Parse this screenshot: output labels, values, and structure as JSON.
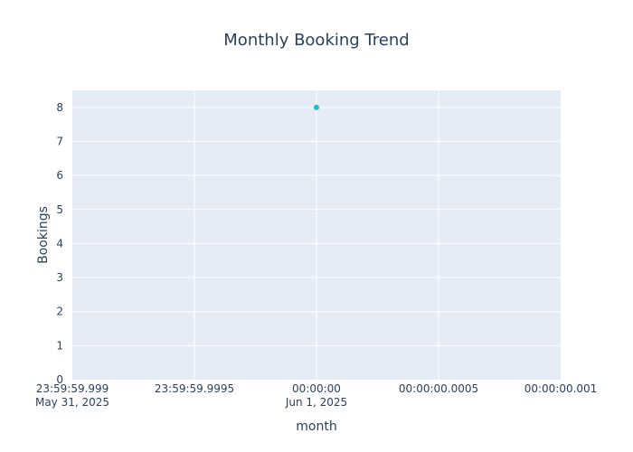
{
  "chart_data": {
    "type": "scatter",
    "title": "Monthly Booking Trend",
    "xlabel": "month",
    "ylabel": "Bookings",
    "x_ticks": [
      {
        "value_ms": -1,
        "line1": "23:59:59.999",
        "line2": "May 31, 2025"
      },
      {
        "value_ms": -0.5,
        "line1": "23:59:59.9995",
        "line2": ""
      },
      {
        "value_ms": 0,
        "line1": "00:00:00",
        "line2": "Jun 1, 2025"
      },
      {
        "value_ms": 0.5,
        "line1": "00:00:00.0005",
        "line2": ""
      },
      {
        "value_ms": 1,
        "line1": "00:00:00.001",
        "line2": ""
      }
    ],
    "y_ticks": [
      0,
      1,
      2,
      3,
      4,
      5,
      6,
      7,
      8
    ],
    "xlim_ms": [
      -1,
      1
    ],
    "ylim": [
      0,
      8.5
    ],
    "grid": true,
    "series": [
      {
        "x": [
          "2025-06-01"
        ],
        "values": [
          8
        ],
        "color": "#19c0d1"
      }
    ],
    "colors": {
      "plot_bg": "#e5ecf6",
      "grid": "#ffffff",
      "text": "#2a3f5f"
    }
  }
}
